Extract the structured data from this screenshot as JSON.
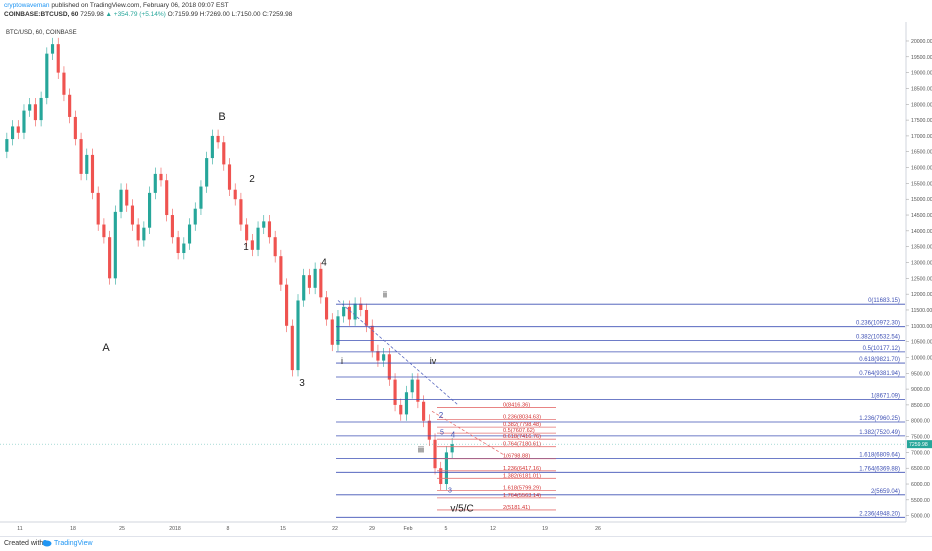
{
  "header": {
    "author": "cryptowaveman",
    "published": "published on TradingView.com, February 06, 2018 09:07 EST",
    "symbol": "COINBASE:BTCUSD, 60",
    "last": "7259.98",
    "change": "▲ +354.79 (+5.14%)",
    "open": "O:7159.99",
    "high": "H:7269.00",
    "low": "L:7150.00",
    "close": "C:7259.98"
  },
  "footer": {
    "created_with": "Created with",
    "brand": "TradingView"
  },
  "colors": {
    "up": "#26a69a",
    "down": "#ef5350",
    "fib_blue": "#3f51b5",
    "fib_red": "#e57373",
    "price_tag": "#26a69a"
  },
  "chart_data": {
    "type": "candlestick",
    "title": "BTC/USD, 60, COINBASE",
    "ylim": [
      4800,
      20600
    ],
    "y_ticks": [
      "20500.00",
      "20000.00",
      "19500.00",
      "19000.00",
      "18500.00",
      "18000.00",
      "17500.00",
      "17000.00",
      "16500.00",
      "16000.00",
      "15500.00",
      "15000.00",
      "14500.00",
      "14000.00",
      "13500.00",
      "13000.00",
      "12500.00",
      "12000.00",
      "11500.00",
      "11000.00",
      "10500.00",
      "10000.00",
      "9500.00",
      "9000.00",
      "8500.00",
      "8000.00",
      "7500.00",
      "7000.00",
      "6500.00",
      "6000.00",
      "5500.00",
      "5000.00"
    ],
    "x_ticks": [
      "11",
      "18",
      "25",
      "2018",
      "8",
      "15",
      "22",
      "29",
      "Feb",
      "5",
      "12",
      "19",
      "26"
    ],
    "last_price": "7259.98",
    "price_series": [
      [
        16500,
        16900
      ],
      [
        16900,
        17300
      ],
      [
        17300,
        17100
      ],
      [
        17100,
        17800
      ],
      [
        17800,
        18000
      ],
      [
        18000,
        17500
      ],
      [
        17500,
        18200
      ],
      [
        18200,
        19600
      ],
      [
        19600,
        19900
      ],
      [
        19900,
        19000
      ],
      [
        19000,
        18300
      ],
      [
        18300,
        17600
      ],
      [
        17600,
        16900
      ],
      [
        16900,
        15800
      ],
      [
        15800,
        16400
      ],
      [
        16400,
        15200
      ],
      [
        15200,
        14200
      ],
      [
        14200,
        13800
      ],
      [
        13800,
        12500
      ],
      [
        12500,
        14600
      ],
      [
        14600,
        15300
      ],
      [
        15300,
        14800
      ],
      [
        14800,
        14200
      ],
      [
        14200,
        13700
      ],
      [
        13700,
        14100
      ],
      [
        14100,
        15200
      ],
      [
        15200,
        15800
      ],
      [
        15800,
        15600
      ],
      [
        15600,
        14500
      ],
      [
        14500,
        13800
      ],
      [
        13800,
        13300
      ],
      [
        13300,
        13600
      ],
      [
        13600,
        14200
      ],
      [
        14200,
        14700
      ],
      [
        14700,
        15400
      ],
      [
        15400,
        16300
      ],
      [
        16300,
        17000
      ],
      [
        17000,
        16800
      ],
      [
        16800,
        16100
      ],
      [
        16100,
        15300
      ],
      [
        15300,
        15000
      ],
      [
        15000,
        14200
      ],
      [
        14200,
        13700
      ],
      [
        13700,
        13400
      ],
      [
        13400,
        14100
      ],
      [
        14100,
        14300
      ],
      [
        14300,
        13800
      ],
      [
        13800,
        13200
      ],
      [
        13200,
        12300
      ],
      [
        12300,
        11000
      ],
      [
        11000,
        9600
      ],
      [
        9600,
        11800
      ],
      [
        11800,
        12600
      ],
      [
        12600,
        12200
      ],
      [
        12200,
        12800
      ],
      [
        12800,
        11900
      ],
      [
        11900,
        11200
      ],
      [
        11200,
        10400
      ],
      [
        10400,
        11300
      ],
      [
        11300,
        11600
      ],
      [
        11600,
        11200
      ],
      [
        11200,
        11700
      ],
      [
        11700,
        11500
      ],
      [
        11500,
        11000
      ],
      [
        11000,
        10200
      ],
      [
        10200,
        9900
      ],
      [
        9900,
        10100
      ],
      [
        10100,
        9300
      ],
      [
        9300,
        8500
      ],
      [
        8500,
        8200
      ],
      [
        8200,
        8900
      ],
      [
        8900,
        9300
      ],
      [
        9300,
        8600
      ],
      [
        8600,
        8000
      ],
      [
        8000,
        7400
      ],
      [
        7400,
        6500
      ],
      [
        6500,
        6000
      ],
      [
        6000,
        7000
      ],
      [
        7000,
        7260
      ]
    ],
    "wave_labels": [
      "A",
      "B",
      "1",
      "2",
      "3",
      "4",
      "i",
      "ii",
      "iii",
      "iv",
      "v/5/C",
      "2",
      "3",
      "4",
      "5"
    ],
    "fib_sets": [
      {
        "color": "blue",
        "levels": [
          {
            "label": "0(11683.15)",
            "value": 11683.15
          },
          {
            "label": "0.236(10972.30)",
            "value": 10972.3
          },
          {
            "label": "0.382(10532.54)",
            "value": 10532.54
          },
          {
            "label": "0.5(10177.12)",
            "value": 10177.12
          },
          {
            "label": "0.618(9821.70)",
            "value": 9821.7
          },
          {
            "label": "0.764(9381.94)",
            "value": 9381.94
          },
          {
            "label": "1(8671.09)",
            "value": 8671.09
          },
          {
            "label": "1.236(7960.25)",
            "value": 7960.25
          },
          {
            "label": "1.382(7520.49)",
            "value": 7520.49
          },
          {
            "label": "1.618(6809.64)",
            "value": 6809.64
          },
          {
            "label": "1.764(6369.88)",
            "value": 6369.88
          },
          {
            "label": "2(5659.04)",
            "value": 5659.04
          },
          {
            "label": "2.236(4948.20)",
            "value": 4948.2
          }
        ]
      },
      {
        "color": "red",
        "levels": [
          {
            "label": "0(8416.36)",
            "value": 8416.36
          },
          {
            "label": "0.236(8034.63)",
            "value": 8034.63
          },
          {
            "label": "0.382(7798.48)",
            "value": 7798.48
          },
          {
            "label": "0.5(7607.62)",
            "value": 7607.62
          },
          {
            "label": "0.618(7416.76)",
            "value": 7416.76
          },
          {
            "label": "0.764(7180.61)",
            "value": 7180.61
          },
          {
            "label": "1(6798.88)",
            "value": 6798.88
          },
          {
            "label": "1.236(6417.16)",
            "value": 6417.16
          },
          {
            "label": "1.382(6181.01)",
            "value": 6181.01
          },
          {
            "label": "1.618(5799.29)",
            "value": 5799.29
          },
          {
            "label": "1.764(5563.14)",
            "value": 5563.14
          },
          {
            "label": "2(5181.41)",
            "value": 5181.41
          }
        ]
      }
    ]
  }
}
